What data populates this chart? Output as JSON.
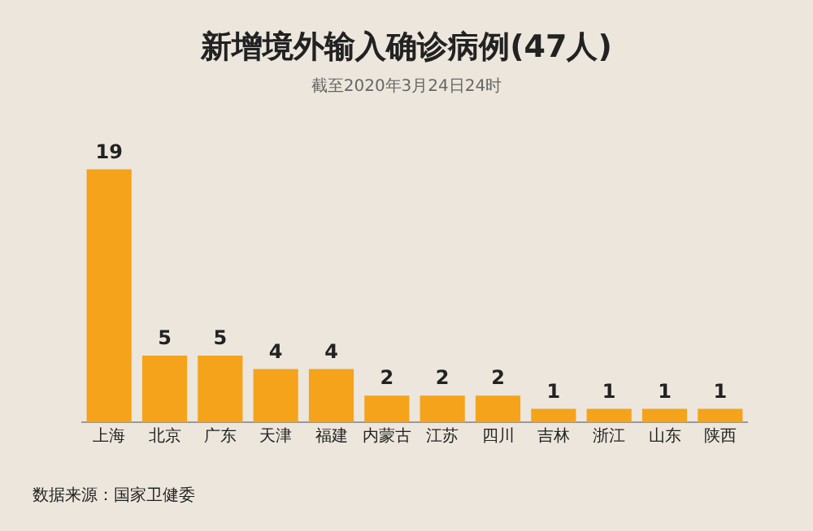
{
  "chart_data": {
    "type": "bar",
    "title": "新增境外输入确诊病例(47人)",
    "subtitle": "截至2020年3月24日24时",
    "categories": [
      "上海",
      "北京",
      "广东",
      "天津",
      "福建",
      "内蒙古",
      "江苏",
      "四川",
      "吉林",
      "浙江",
      "山东",
      "陕西"
    ],
    "values": [
      19,
      5,
      5,
      4,
      4,
      2,
      2,
      2,
      1,
      1,
      1,
      1
    ],
    "color": "#f5a31a",
    "data_labels": true,
    "grid": false,
    "legend": false,
    "annotations": [
      "数据来源：国家卫健委"
    ]
  }
}
